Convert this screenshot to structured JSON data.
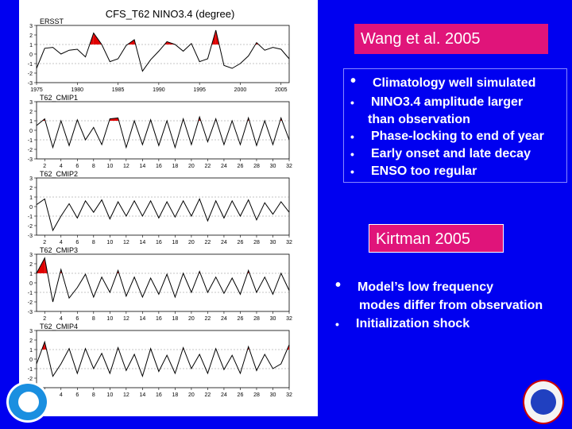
{
  "figure": {
    "title": "CFS_T62  NINO3.4  (degree)",
    "panels": [
      {
        "name": "ERSST",
        "xticks": [
          "1975",
          "1980",
          "1985",
          "1990",
          "1995",
          "2000",
          "2005"
        ]
      },
      {
        "name": "T62_CMIP1",
        "xticks": [
          "2",
          "4",
          "6",
          "8",
          "10",
          "12",
          "14",
          "16",
          "18",
          "20",
          "22",
          "24",
          "26",
          "28",
          "30",
          "32"
        ]
      },
      {
        "name": "T62_CMIP2",
        "xticks": [
          "2",
          "4",
          "6",
          "8",
          "10",
          "12",
          "14",
          "16",
          "18",
          "20",
          "22",
          "24",
          "26",
          "28",
          "30",
          "32"
        ]
      },
      {
        "name": "T62_CMIP3",
        "xticks": [
          "2",
          "4",
          "6",
          "8",
          "10",
          "12",
          "14",
          "16",
          "18",
          "20",
          "22",
          "24",
          "26",
          "28",
          "30",
          "32"
        ]
      },
      {
        "name": "T62_CMIP4",
        "xticks": [
          "2",
          "4",
          "6",
          "8",
          "10",
          "12",
          "14",
          "16",
          "18",
          "20",
          "22",
          "24",
          "26",
          "28",
          "30",
          "32"
        ]
      }
    ],
    "yticks": [
      "3",
      "2",
      "1",
      "0",
      "-1",
      "-2",
      "-3"
    ]
  },
  "chart_data": [
    {
      "type": "line",
      "title": "ERSST",
      "x_range": [
        1975,
        2006
      ],
      "ylim": [
        -3,
        3
      ],
      "x": [
        1975,
        1976,
        1977,
        1978,
        1979,
        1980,
        1981,
        1982,
        1983,
        1984,
        1985,
        1986,
        1987,
        1988,
        1989,
        1990,
        1991,
        1992,
        1993,
        1994,
        1995,
        1996,
        1997,
        1998,
        1999,
        2000,
        2001,
        2002,
        2003,
        2004,
        2005,
        2006
      ],
      "values": [
        -1.5,
        0.6,
        0.7,
        0.0,
        0.4,
        0.5,
        -0.3,
        2.2,
        1.0,
        -0.8,
        -0.5,
        0.9,
        1.5,
        -1.8,
        -0.6,
        0.3,
        1.3,
        1.0,
        0.3,
        1.1,
        -0.8,
        -0.5,
        2.5,
        -1.2,
        -1.5,
        -1.0,
        -0.2,
        1.2,
        0.4,
        0.7,
        0.5,
        -0.5
      ],
      "highlight_above": 1.0
    },
    {
      "type": "line",
      "title": "T62_CMIP1",
      "x_range": [
        1,
        32
      ],
      "ylim": [
        -3,
        3
      ],
      "x": [
        1,
        2,
        3,
        4,
        5,
        6,
        7,
        8,
        9,
        10,
        11,
        12,
        13,
        14,
        15,
        16,
        17,
        18,
        19,
        20,
        21,
        22,
        23,
        24,
        25,
        26,
        27,
        28,
        29,
        30,
        31,
        32
      ],
      "values": [
        0.5,
        1.2,
        -1.8,
        1.0,
        -1.6,
        1.1,
        -1.0,
        0.3,
        -1.5,
        1.2,
        1.3,
        -1.8,
        1.0,
        -1.5,
        1.1,
        -1.6,
        1.0,
        -1.8,
        1.2,
        -1.5,
        1.4,
        -1.2,
        1.2,
        -1.5,
        1.0,
        -1.5,
        1.3,
        -1.6,
        1.0,
        -1.5,
        1.3,
        -1.0
      ],
      "highlight_above": 1.0
    },
    {
      "type": "line",
      "title": "T62_CMIP2",
      "x_range": [
        1,
        32
      ],
      "ylim": [
        -3,
        3
      ],
      "x": [
        1,
        2,
        3,
        4,
        5,
        6,
        7,
        8,
        9,
        10,
        11,
        12,
        13,
        14,
        15,
        16,
        17,
        18,
        19,
        20,
        21,
        22,
        23,
        24,
        25,
        26,
        27,
        28,
        29,
        30,
        31,
        32
      ],
      "values": [
        0.2,
        0.8,
        -2.5,
        -1.0,
        0.3,
        -1.2,
        0.6,
        -0.6,
        0.7,
        -1.3,
        0.5,
        -1.0,
        0.6,
        -1.0,
        0.6,
        -1.2,
        0.5,
        -1.1,
        0.6,
        -1.0,
        0.8,
        -1.5,
        0.6,
        -1.2,
        0.6,
        -1.0,
        0.7,
        -1.4,
        0.4,
        -0.8,
        0.5,
        -0.6
      ],
      "highlight_above": 1.0
    },
    {
      "type": "line",
      "title": "T62_CMIP3",
      "x_range": [
        1,
        32
      ],
      "ylim": [
        -3,
        3
      ],
      "x": [
        1,
        2,
        3,
        4,
        5,
        6,
        7,
        8,
        9,
        10,
        11,
        12,
        13,
        14,
        15,
        16,
        17,
        18,
        19,
        20,
        21,
        22,
        23,
        24,
        25,
        26,
        27,
        28,
        29,
        30,
        31,
        32
      ],
      "values": [
        1.0,
        2.6,
        -2.0,
        1.4,
        -1.6,
        -0.5,
        0.9,
        -1.5,
        0.6,
        -1.0,
        1.3,
        -1.4,
        0.6,
        -1.5,
        0.5,
        -1.2,
        0.9,
        -1.5,
        1.0,
        -1.0,
        1.2,
        -1.0,
        0.6,
        -1.1,
        0.5,
        -1.2,
        1.3,
        -1.0,
        0.6,
        -1.2,
        1.0,
        -0.8
      ],
      "highlight_above": 1.0
    },
    {
      "type": "line",
      "title": "T62_CMIP4",
      "x_range": [
        1,
        32
      ],
      "ylim": [
        -3,
        3
      ],
      "x": [
        1,
        2,
        3,
        4,
        5,
        6,
        7,
        8,
        9,
        10,
        11,
        12,
        13,
        14,
        15,
        16,
        17,
        18,
        19,
        20,
        21,
        22,
        23,
        24,
        25,
        26,
        27,
        28,
        29,
        30,
        31,
        32
      ],
      "values": [
        -0.5,
        1.8,
        -1.8,
        -0.5,
        1.1,
        -1.5,
        1.1,
        -1.0,
        0.6,
        -1.5,
        1.2,
        -1.2,
        0.5,
        -1.8,
        1.1,
        -1.3,
        0.4,
        -1.5,
        1.2,
        -1.0,
        0.5,
        -1.5,
        1.1,
        -1.1,
        0.4,
        -1.5,
        1.3,
        -1.2,
        0.5,
        -1.0,
        -0.5,
        1.5
      ],
      "highlight_above": 1.0
    }
  ],
  "wang": {
    "title": "Wang et al. 2005",
    "bullets": [
      "Climatology well simulated",
      "NINO3.4 amplitude larger",
      "than observation",
      "Phase-locking to end of year",
      "Early onset and late decay",
      "ENSO too regular"
    ]
  },
  "kirtman": {
    "title": "Kirtman 2005",
    "bullets": [
      "Model’s low frequency",
      "modes differ from observation",
      "Initialization shock"
    ]
  },
  "colors": {
    "background": "#0000f0",
    "accent": "#e0147a",
    "highlight": "#e00000"
  }
}
